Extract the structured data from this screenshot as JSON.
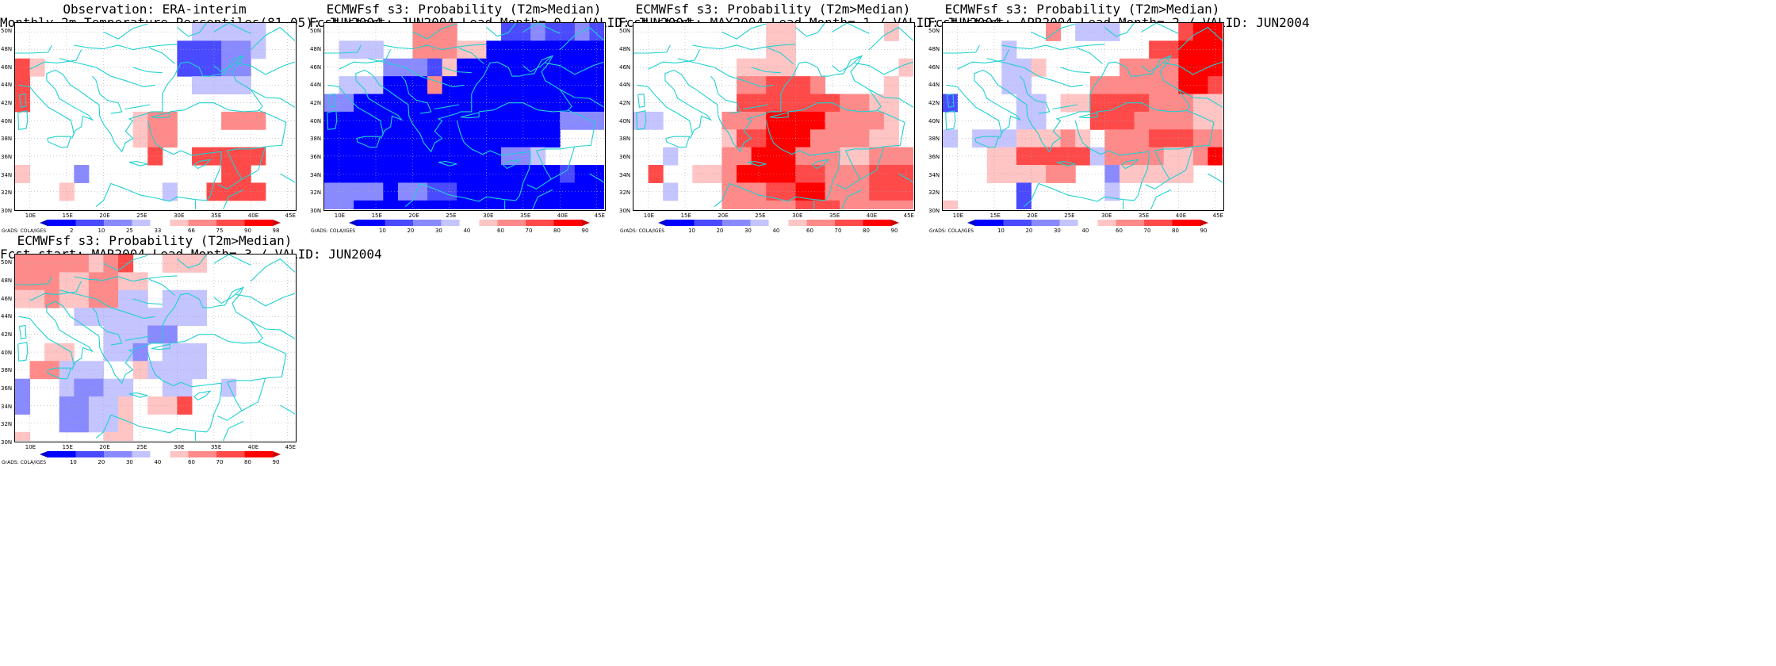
{
  "credit": "GrADS: COLA/IGES",
  "cell_colors": {
    "-4": "#0000ff",
    "-3": "#4a4aff",
    "-2": "#8a8aff",
    "-1": "#c4c4ff",
    "0": "#ffffff",
    "1": "#ffc4c4",
    "2": "#ff8a8a",
    "3": "#ff4a4a",
    "4": "#ff0000"
  },
  "coast_color": "#20d0d0",
  "chart_data": [
    {
      "type": "heatmap",
      "title": "Observation: ERA-interim",
      "subtitle": "Monthly 2m Temperature Percentiles(81-05): JUN2004",
      "xlabels": [
        "10E",
        "15E",
        "20E",
        "25E",
        "30E",
        "35E",
        "40E",
        "45E"
      ],
      "ylabels": [
        "50N",
        "48N",
        "46N",
        "44N",
        "42N",
        "40N",
        "38N",
        "36N",
        "34N",
        "32N",
        "30N"
      ],
      "colorbar_labels": [
        "2",
        "10",
        "25",
        "33",
        "66",
        "75",
        "90",
        "98"
      ],
      "lon_range": [
        8,
        46
      ],
      "lat_range": [
        30,
        51
      ],
      "grid": [
        [
          0,
          0,
          0,
          0,
          0,
          0,
          0,
          0,
          0,
          0,
          0,
          0,
          0,
          0,
          0,
          0,
          0,
          0,
          0,
          0,
          0,
          0,
          0,
          0,
          0,
          0,
          0,
          0,
          0,
          0,
          0,
          0,
          0,
          0,
          0,
          0,
          0,
          0
        ],
        [
          0,
          0,
          0,
          0,
          0,
          0,
          0,
          0,
          0,
          0,
          0,
          0,
          0,
          0,
          0,
          0,
          0,
          0,
          0,
          0,
          0,
          0,
          0,
          0,
          0,
          0,
          0,
          0,
          0,
          0,
          0,
          0,
          0,
          0,
          0,
          0,
          0,
          0
        ],
        [
          0,
          0,
          0,
          0,
          0,
          0,
          0,
          0,
          0,
          0,
          0,
          0,
          0,
          0,
          0,
          0,
          0,
          0,
          0,
          0,
          0,
          0,
          0,
          0,
          0,
          0,
          0,
          0,
          0,
          0,
          0,
          0,
          0,
          0,
          0,
          0,
          0,
          0
        ],
        [
          0,
          0,
          0,
          0,
          0,
          0,
          0,
          0,
          0,
          0,
          0,
          0,
          0,
          0,
          0,
          0,
          0,
          0,
          0,
          0,
          0,
          0,
          0,
          0,
          0,
          0,
          0,
          0,
          0,
          0,
          0,
          0,
          0,
          0,
          0,
          0,
          0,
          0
        ],
        [
          0,
          0,
          0,
          0,
          0,
          0,
          0,
          0,
          0,
          0,
          0,
          0,
          0,
          0,
          0,
          0,
          0,
          0,
          0,
          0,
          0,
          0,
          0,
          0,
          0,
          0,
          0,
          0,
          0,
          0,
          0,
          0,
          0,
          0,
          0,
          0,
          0,
          0
        ],
        [
          0,
          0,
          0,
          0,
          0,
          0,
          0,
          0,
          0,
          0,
          0,
          0,
          0,
          0,
          0,
          0,
          0,
          0,
          0,
          0,
          0,
          0,
          0,
          0,
          0,
          0,
          0,
          0,
          0,
          0,
          0,
          0,
          0,
          0,
          0,
          0,
          0,
          0
        ],
        [
          0,
          0,
          0,
          0,
          0,
          0,
          0,
          0,
          0,
          0,
          0,
          0,
          0,
          0,
          0,
          0,
          0,
          0,
          0,
          0,
          0,
          0,
          0,
          0,
          0,
          0,
          0,
          0,
          0,
          0,
          0,
          0,
          0,
          0,
          0,
          0,
          0,
          0
        ],
        [
          0,
          0,
          0,
          0,
          0,
          0,
          0,
          0,
          0,
          0,
          0,
          0,
          0,
          0,
          0,
          0,
          0,
          0,
          0,
          0,
          0,
          0,
          0,
          0,
          0,
          0,
          0,
          0,
          0,
          0,
          0,
          0,
          0,
          0,
          0,
          0,
          0,
          0
        ],
        [
          0,
          0,
          0,
          0,
          0,
          0,
          0,
          0,
          0,
          0,
          0,
          0,
          0,
          0,
          0,
          0,
          0,
          0,
          0,
          0,
          0,
          0,
          0,
          0,
          0,
          0,
          0,
          0,
          0,
          0,
          0,
          0,
          0,
          0,
          0,
          0,
          0,
          0
        ],
        [
          0,
          0,
          0,
          0,
          0,
          0,
          0,
          0,
          0,
          0,
          0,
          0,
          0,
          0,
          0,
          0,
          0,
          0,
          0,
          0,
          0,
          0,
          0,
          0,
          0,
          0,
          0,
          0,
          0,
          0,
          0,
          0,
          0,
          0,
          0,
          0,
          0,
          0
        ],
        [
          0,
          0,
          0,
          0,
          0,
          0,
          0,
          0,
          0,
          0,
          0,
          0,
          0,
          0,
          0,
          0,
          0,
          0,
          0,
          0,
          0,
          0,
          0,
          0,
          0,
          0,
          0,
          0,
          0,
          0,
          0,
          0,
          0,
          0,
          0,
          0,
          0,
          0
        ]
      ]
    },
    {
      "type": "heatmap",
      "title": "ECMWFsf s3: Probability (T2m>Median)",
      "subtitle": "Fcst start: JUN2004   Lead Month= 0 / VALID: JUN2004",
      "xlabels": [
        "10E",
        "15E",
        "20E",
        "25E",
        "30E",
        "35E",
        "40E",
        "45E"
      ],
      "ylabels": [
        "50N",
        "48N",
        "46N",
        "44N",
        "42N",
        "40N",
        "38N",
        "36N",
        "34N",
        "32N",
        "30N"
      ],
      "colorbar_labels": [
        "10",
        "20",
        "30",
        "40",
        "60",
        "70",
        "80",
        "90"
      ],
      "lon_range": [
        8,
        46
      ],
      "lat_range": [
        30,
        51
      ],
      "grid": []
    },
    {
      "type": "heatmap",
      "title": "ECMWFsf s3: Probability (T2m>Median)",
      "subtitle": "Fcst start: MAY2004   Lead Month= 1 / VALID: JUN2004",
      "xlabels": [
        "10E",
        "15E",
        "20E",
        "25E",
        "30E",
        "35E",
        "40E",
        "45E"
      ],
      "ylabels": [
        "50N",
        "48N",
        "46N",
        "44N",
        "42N",
        "40N",
        "38N",
        "36N",
        "34N",
        "32N",
        "30N"
      ],
      "colorbar_labels": [
        "10",
        "20",
        "30",
        "40",
        "60",
        "70",
        "80",
        "90"
      ],
      "lon_range": [
        8,
        46
      ],
      "lat_range": [
        30,
        51
      ],
      "grid": []
    },
    {
      "type": "heatmap",
      "title": "ECMWFsf s3: Probability (T2m>Median)",
      "subtitle": "Fcst start: APR2004   Lead Month= 2 / VALID: JUN2004",
      "xlabels": [
        "10E",
        "15E",
        "20E",
        "25E",
        "30E",
        "35E",
        "40E",
        "45E"
      ],
      "ylabels": [
        "50N",
        "48N",
        "46N",
        "44N",
        "42N",
        "40N",
        "38N",
        "36N",
        "34N",
        "32N",
        "30N"
      ],
      "colorbar_labels": [
        "10",
        "20",
        "30",
        "40",
        "60",
        "70",
        "80",
        "90"
      ],
      "lon_range": [
        8,
        46
      ],
      "lat_range": [
        30,
        51
      ],
      "grid": []
    },
    {
      "type": "heatmap",
      "title": "ECMWFsf s3: Probability (T2m>Median)",
      "subtitle": "Fcst start: MAR2004   Lead Month= 3 / VALID: JUN2004",
      "xlabels": [
        "10E",
        "15E",
        "20E",
        "25E",
        "30E",
        "35E",
        "40E",
        "45E"
      ],
      "ylabels": [
        "50N",
        "48N",
        "46N",
        "44N",
        "42N",
        "40N",
        "38N",
        "36N",
        "34N",
        "32N",
        "30N"
      ],
      "colorbar_labels": [
        "10",
        "20",
        "30",
        "40",
        "60",
        "70",
        "80",
        "90"
      ],
      "lon_range": [
        8,
        46
      ],
      "lat_range": [
        30,
        51
      ],
      "grid": []
    }
  ]
}
